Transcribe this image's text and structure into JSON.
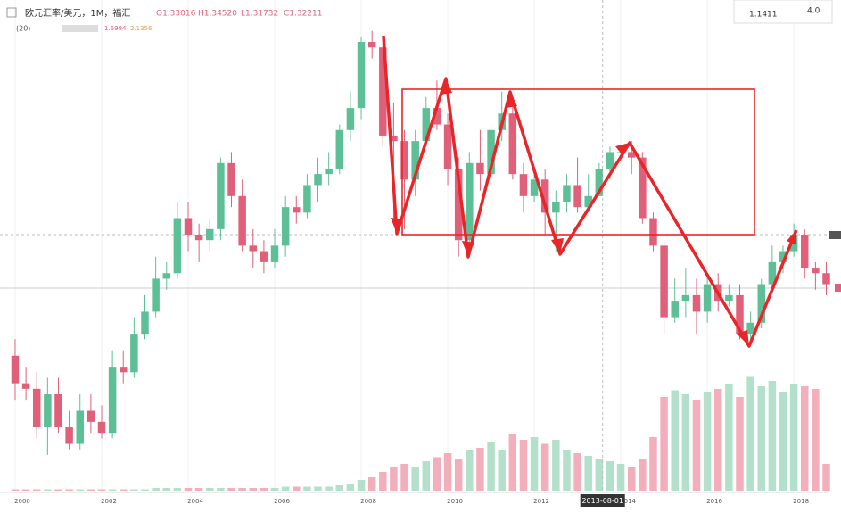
{
  "chart_data": {
    "type": "candlestick",
    "title": "欧元汇率/美元，1M，福汇",
    "ohlc_legend": [
      "O1.33016",
      "H1.34520",
      "L1.31732",
      "C1.32211"
    ],
    "volume_legend": [
      "(20)",
      "1.6984",
      "2.1356"
    ],
    "price_box": [
      "1.1411",
      "4.0"
    ],
    "crosshair_label": "2013-08-01",
    "crosshair_x": 2013.58,
    "up_color": "#5cbf95",
    "down_color": "#e0607a",
    "volume_up_color": "#b3e0cb",
    "volume_down_color": "#f3aebb",
    "xlim": [
      1999.65,
      2019.09
    ],
    "ylim": [
      0.765,
      1.64
    ],
    "volume_ylim": [
      0,
      100
    ],
    "xticks": [
      2000,
      2002,
      2004,
      2006,
      2008,
      2010,
      2012,
      2014,
      2016,
      2018
    ],
    "x": [
      2000,
      2000.25,
      2000.5,
      2000.75,
      2001,
      2001.25,
      2001.5,
      2001.75,
      2002,
      2002.25,
      2002.5,
      2002.75,
      2003,
      2003.25,
      2003.5,
      2003.75,
      2004,
      2004.25,
      2004.5,
      2004.75,
      2005,
      2005.25,
      2005.5,
      2005.75,
      2006,
      2006.25,
      2006.5,
      2006.75,
      2007,
      2007.25,
      2007.5,
      2007.75,
      2008,
      2008.25,
      2008.5,
      2008.75,
      2009,
      2009.25,
      2009.5,
      2009.75,
      2010,
      2010.25,
      2010.5,
      2010.75,
      2011,
      2011.25,
      2011.5,
      2011.75,
      2012,
      2012.25,
      2012.5,
      2012.75,
      2013,
      2013.25,
      2013.5,
      2013.75,
      2014,
      2014.25,
      2014.5,
      2014.75,
      2015,
      2015.25,
      2015.5,
      2015.75,
      2016,
      2016.25,
      2016.5,
      2016.75,
      2017,
      2017.25,
      2017.5,
      2017.75,
      2018,
      2018.25,
      2018.5,
      2018.75
    ],
    "open": [
      1.01,
      0.96,
      0.95,
      0.88,
      0.94,
      0.88,
      0.85,
      0.91,
      0.89,
      0.87,
      0.99,
      0.98,
      1.05,
      1.09,
      1.15,
      1.16,
      1.26,
      1.23,
      1.22,
      1.24,
      1.36,
      1.3,
      1.21,
      1.2,
      1.18,
      1.21,
      1.28,
      1.27,
      1.32,
      1.34,
      1.35,
      1.42,
      1.46,
      1.58,
      1.57,
      1.41,
      1.4,
      1.33,
      1.4,
      1.46,
      1.43,
      1.35,
      1.22,
      1.36,
      1.34,
      1.42,
      1.45,
      1.34,
      1.3,
      1.33,
      1.27,
      1.29,
      1.32,
      1.28,
      1.3,
      1.35,
      1.38,
      1.38,
      1.37,
      1.26,
      1.21,
      1.08,
      1.11,
      1.12,
      1.09,
      1.14,
      1.11,
      1.12,
      1.05,
      1.07,
      1.14,
      1.18,
      1.2,
      1.23,
      1.17,
      1.16
    ],
    "high": [
      1.04,
      0.99,
      0.98,
      0.97,
      0.97,
      0.91,
      0.94,
      0.94,
      0.92,
      1.02,
      1.02,
      1.08,
      1.12,
      1.19,
      1.18,
      1.29,
      1.29,
      1.25,
      1.26,
      1.37,
      1.38,
      1.33,
      1.24,
      1.22,
      1.24,
      1.3,
      1.3,
      1.34,
      1.37,
      1.38,
      1.43,
      1.49,
      1.59,
      1.6,
      1.59,
      1.47,
      1.42,
      1.42,
      1.48,
      1.51,
      1.45,
      1.37,
      1.38,
      1.42,
      1.43,
      1.49,
      1.47,
      1.36,
      1.35,
      1.35,
      1.31,
      1.34,
      1.37,
      1.34,
      1.36,
      1.39,
      1.39,
      1.4,
      1.38,
      1.27,
      1.22,
      1.15,
      1.17,
      1.15,
      1.16,
      1.16,
      1.14,
      1.14,
      1.09,
      1.15,
      1.21,
      1.21,
      1.25,
      1.24,
      1.18,
      1.18
    ],
    "low": [
      0.93,
      0.93,
      0.86,
      0.83,
      0.87,
      0.84,
      0.84,
      0.87,
      0.86,
      0.86,
      0.96,
      0.97,
      1.04,
      1.08,
      1.13,
      1.15,
      1.2,
      1.18,
      1.2,
      1.22,
      1.28,
      1.2,
      1.17,
      1.16,
      1.17,
      1.19,
      1.25,
      1.26,
      1.29,
      1.32,
      1.34,
      1.4,
      1.44,
      1.55,
      1.39,
      1.25,
      1.24,
      1.3,
      1.39,
      1.42,
      1.32,
      1.19,
      1.21,
      1.31,
      1.33,
      1.4,
      1.33,
      1.27,
      1.29,
      1.23,
      1.2,
      1.27,
      1.27,
      1.27,
      1.3,
      1.33,
      1.37,
      1.34,
      1.25,
      1.2,
      1.05,
      1.07,
      1.08,
      1.05,
      1.07,
      1.09,
      1.1,
      1.04,
      1.03,
      1.06,
      1.13,
      1.16,
      1.19,
      1.15,
      1.13,
      1.12
    ],
    "close": [
      0.96,
      0.95,
      0.88,
      0.94,
      0.88,
      0.85,
      0.91,
      0.89,
      0.87,
      0.99,
      0.98,
      1.05,
      1.09,
      1.15,
      1.16,
      1.26,
      1.23,
      1.22,
      1.24,
      1.36,
      1.3,
      1.21,
      1.2,
      1.18,
      1.21,
      1.28,
      1.27,
      1.32,
      1.34,
      1.35,
      1.42,
      1.46,
      1.58,
      1.57,
      1.41,
      1.4,
      1.33,
      1.4,
      1.46,
      1.43,
      1.35,
      1.22,
      1.36,
      1.34,
      1.42,
      1.45,
      1.34,
      1.3,
      1.33,
      1.27,
      1.29,
      1.32,
      1.28,
      1.3,
      1.35,
      1.38,
      1.38,
      1.37,
      1.26,
      1.21,
      1.08,
      1.11,
      1.12,
      1.09,
      1.14,
      1.11,
      1.12,
      1.05,
      1.07,
      1.14,
      1.18,
      1.2,
      1.23,
      1.17,
      1.16,
      1.14
    ],
    "volume": [
      1,
      1,
      1,
      1,
      1,
      1,
      1,
      1,
      1,
      1,
      1,
      1,
      1,
      2,
      2,
      2,
      2,
      2,
      2,
      2,
      2,
      2,
      2,
      2,
      2,
      3,
      3,
      3,
      3,
      3,
      4,
      5,
      8,
      10,
      14,
      18,
      20,
      18,
      22,
      25,
      28,
      24,
      30,
      32,
      36,
      30,
      42,
      38,
      40,
      35,
      38,
      30,
      28,
      26,
      24,
      22,
      20,
      18,
      24,
      40,
      70,
      75,
      72,
      68,
      74,
      76,
      80,
      70,
      85,
      78,
      82,
      74,
      80,
      78,
      76,
      20
    ]
  }
}
